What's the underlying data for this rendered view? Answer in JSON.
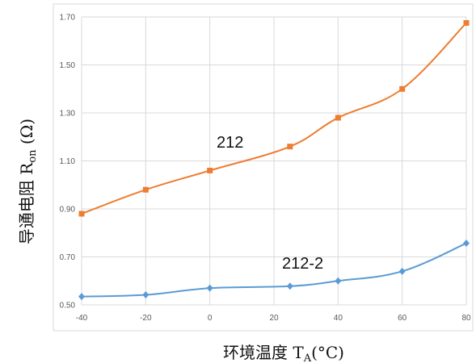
{
  "chart_data": {
    "type": "line",
    "title": "",
    "xlabel": {
      "main": "环境温度 T",
      "sub": "A",
      "unit": "(°C)"
    },
    "ylabel": {
      "main": "导通电阻 R",
      "sub": "on",
      "unit": " (Ω)"
    },
    "xlim": [
      -40,
      80
    ],
    "ylim": [
      0.5,
      1.7
    ],
    "x_ticks": [
      -40,
      -20,
      0,
      20,
      40,
      60,
      80
    ],
    "y_ticks": [
      "0.50",
      "0.70",
      "0.90",
      "1.10",
      "1.30",
      "1.50",
      "1.70"
    ],
    "grid": true,
    "legend": "none",
    "series": [
      {
        "label": "212",
        "color": "#ED7D31",
        "marker": "square",
        "x": [
          -40,
          -20,
          0,
          25,
          40,
          60,
          80
        ],
        "values": [
          0.88,
          0.98,
          1.06,
          1.16,
          1.28,
          1.4,
          1.675
        ]
      },
      {
        "label": "212-2",
        "color": "#5B9BD5",
        "marker": "diamond",
        "x": [
          -40,
          -20,
          0,
          25,
          40,
          60,
          80
        ],
        "values": [
          0.535,
          0.542,
          0.57,
          0.578,
          0.6,
          0.64,
          0.757
        ]
      }
    ]
  }
}
